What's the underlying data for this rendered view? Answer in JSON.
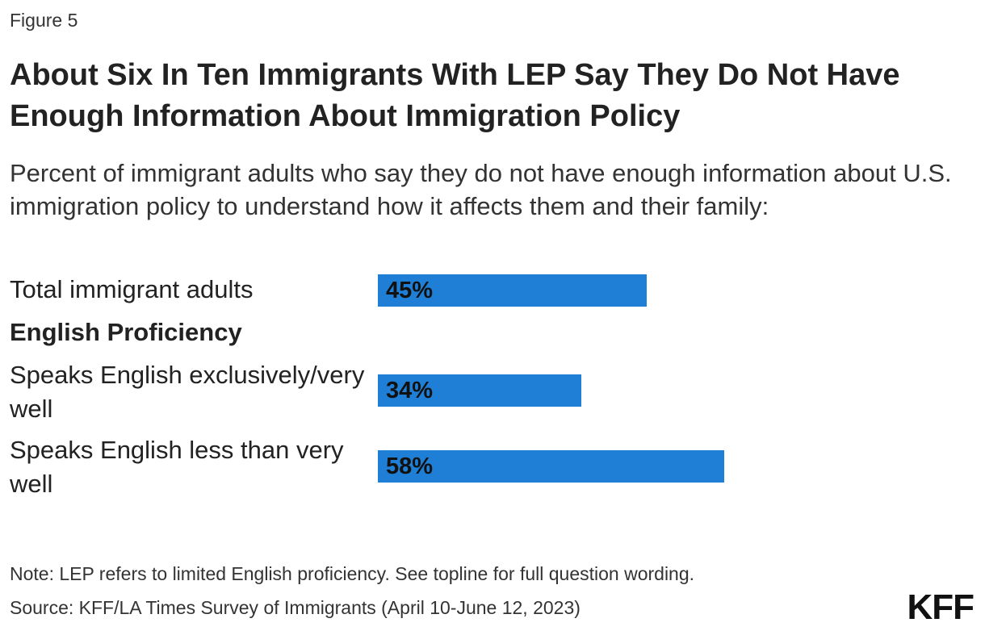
{
  "figure_label": "Figure 5",
  "logo_text": "KFF",
  "note": "Note: LEP refers to limited English proficiency. See topline for full question wording.",
  "source": "Source: KFF/LA Times Survey of Immigrants (April 10-June 12, 2023)",
  "colors": {
    "bar": "#1f7fd7",
    "text": "#222222"
  },
  "chart_data": {
    "type": "bar",
    "orientation": "horizontal",
    "title": "About Six In Ten Immigrants With LEP Say They Do Not Have Enough Information About Immigration Policy",
    "subtitle": "Percent of immigrant adults who say they do not have enough information about U.S. immigration policy to understand how it affects them and their family:",
    "group_heading": "English Proficiency",
    "categories": [
      "Total immigrant adults",
      "Speaks English exclusively/very well",
      "Speaks English less than very well"
    ],
    "values": [
      45,
      34,
      58
    ],
    "value_labels": [
      "45%",
      "34%",
      "58%"
    ],
    "xlim": [
      0,
      100
    ],
    "grid": false,
    "legend": "none"
  }
}
